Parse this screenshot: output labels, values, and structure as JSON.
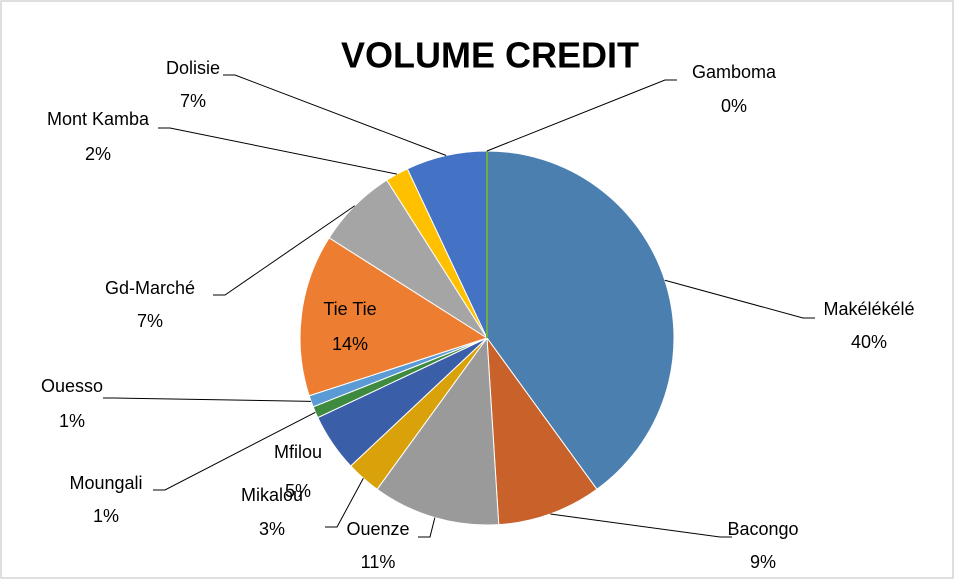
{
  "chart_data": {
    "type": "pie",
    "title": "VOLUME CREDIT",
    "categories": [
      "Makélékélé",
      "Bacongo",
      "Ouenze",
      "Mikalou",
      "Mfilou",
      "Moungali",
      "Ouesso",
      "Tie Tie",
      "Gd-Marché",
      "Mont Kamba",
      "Dolisie",
      "Gamboma"
    ],
    "values": [
      40,
      9,
      11,
      3,
      5,
      1,
      1,
      14,
      7,
      2,
      7,
      0
    ],
    "value_labels": [
      "40%",
      "9%",
      "11%",
      "3%",
      "5%",
      "1%",
      "1%",
      "14%",
      "7%",
      "2%",
      "7%",
      "0%"
    ],
    "colors": [
      "#4a7fb0",
      "#c8622a",
      "#9a9a9a",
      "#d9a20a",
      "#3b5ea8",
      "#3e8a3e",
      "#5b9bd5",
      "#ed7d31",
      "#a5a5a5",
      "#ffc000",
      "#4472c4",
      "#70ad47"
    ]
  }
}
